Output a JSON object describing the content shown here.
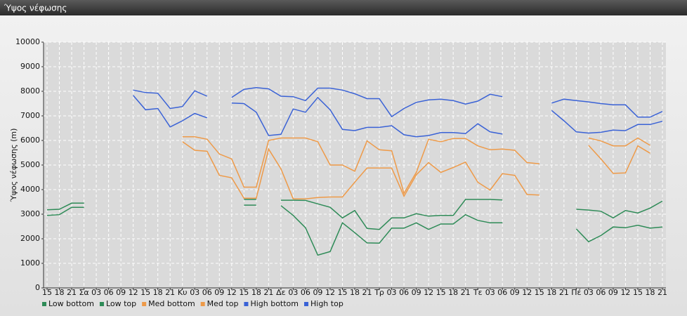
{
  "chart_data": {
    "type": "line",
    "title": "Ύψος νέφωσης",
    "ylabel": "Ύψος νέφωσης (m)",
    "categories": [
      "15",
      "18",
      "21",
      "Σα",
      "03",
      "06",
      "09",
      "12",
      "15",
      "18",
      "21",
      "Κυ",
      "03",
      "06",
      "09",
      "12",
      "15",
      "18",
      "21",
      "Δε",
      "03",
      "06",
      "09",
      "12",
      "15",
      "18",
      "21",
      "Τρ",
      "03",
      "06",
      "09",
      "12",
      "15",
      "18",
      "21",
      "Τε",
      "03",
      "06",
      "09",
      "12",
      "15",
      "18",
      "21",
      "Πέ",
      "03",
      "06",
      "09",
      "12",
      "15",
      "18",
      "21"
    ],
    "ylim": [
      0,
      10000
    ],
    "yticks": [
      0,
      1000,
      2000,
      3000,
      4000,
      5000,
      6000,
      7000,
      8000,
      9000,
      10000
    ],
    "grid": true,
    "legend": "bottom",
    "series": [
      {
        "name": "Low bottom",
        "color": "#2e8b57",
        "values": [
          2950,
          2980,
          3280,
          3280,
          null,
          null,
          null,
          null,
          null,
          null,
          null,
          null,
          null,
          null,
          null,
          null,
          3370,
          3370,
          null,
          3350,
          2950,
          2450,
          1330,
          1480,
          2650,
          2250,
          1830,
          1820,
          2430,
          2430,
          2650,
          2380,
          2600,
          2600,
          2980,
          2750,
          2650,
          2650,
          null,
          null,
          null,
          null,
          null,
          2400,
          1880,
          2130,
          2480,
          2450,
          2550,
          2430,
          2480
        ]
      },
      {
        "name": "Low top",
        "color": "#2e8b57",
        "values": [
          3180,
          3200,
          3450,
          3450,
          null,
          null,
          null,
          null,
          null,
          null,
          null,
          null,
          null,
          null,
          null,
          null,
          3600,
          3600,
          null,
          3570,
          3570,
          3560,
          3420,
          3280,
          2850,
          3150,
          2420,
          2380,
          2850,
          2850,
          3020,
          2920,
          2950,
          2950,
          3600,
          3600,
          3600,
          3580,
          null,
          null,
          null,
          null,
          null,
          3200,
          3170,
          3120,
          2850,
          3150,
          3050,
          3250,
          3530
        ]
      },
      {
        "name": "Med bottom",
        "color": "#ee9a48",
        "values": [
          null,
          null,
          null,
          null,
          null,
          null,
          null,
          null,
          null,
          null,
          null,
          5950,
          5600,
          5560,
          4580,
          4480,
          3650,
          3650,
          5650,
          4850,
          3620,
          3620,
          3680,
          3700,
          3700,
          4300,
          4880,
          4880,
          4880,
          3730,
          4600,
          5100,
          4700,
          4900,
          5120,
          4300,
          3980,
          4650,
          4580,
          3800,
          3780,
          null,
          null,
          null,
          5800,
          5250,
          4660,
          4680,
          5780,
          5480,
          null
        ]
      },
      {
        "name": "Med top",
        "color": "#ee9a48",
        "values": [
          null,
          null,
          null,
          null,
          null,
          null,
          null,
          null,
          null,
          null,
          null,
          6150,
          6150,
          6050,
          5450,
          5250,
          4100,
          4100,
          6000,
          6100,
          6100,
          6100,
          5950,
          5000,
          5000,
          4750,
          5980,
          5620,
          5580,
          3850,
          4700,
          6050,
          5950,
          6080,
          6080,
          5780,
          5620,
          5650,
          5600,
          5100,
          5050,
          null,
          null,
          null,
          6100,
          5980,
          5780,
          5780,
          6100,
          5800,
          null
        ]
      },
      {
        "name": "High bottom",
        "color": "#3a62d6",
        "values": [
          null,
          null,
          null,
          null,
          null,
          null,
          null,
          7830,
          7250,
          7300,
          6550,
          6800,
          7100,
          6920,
          null,
          7520,
          7500,
          7150,
          6200,
          6250,
          7280,
          7150,
          7750,
          7250,
          6450,
          6400,
          6530,
          6530,
          6600,
          6230,
          6150,
          6200,
          6320,
          6320,
          6280,
          6680,
          6350,
          6260,
          null,
          null,
          null,
          7220,
          6800,
          6350,
          6300,
          6330,
          6420,
          6400,
          6650,
          6650,
          6780
        ]
      },
      {
        "name": "High top",
        "color": "#3a62d6",
        "values": [
          null,
          null,
          null,
          null,
          null,
          null,
          null,
          8050,
          7950,
          7920,
          7300,
          7380,
          8020,
          7800,
          null,
          7750,
          8080,
          8150,
          8100,
          7800,
          7780,
          7620,
          8130,
          8130,
          8050,
          7900,
          7700,
          7700,
          6970,
          7300,
          7550,
          7650,
          7680,
          7620,
          7480,
          7600,
          7880,
          7780,
          null,
          null,
          null,
          7520,
          7680,
          7620,
          7570,
          7500,
          7450,
          7450,
          6950,
          6950,
          7180
        ]
      }
    ]
  }
}
